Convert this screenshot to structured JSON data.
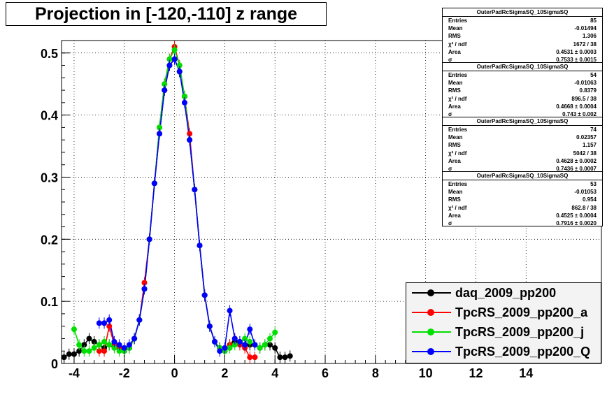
{
  "title": "Projection in [-120,-110] z range",
  "chart_data": {
    "type": "scatter",
    "title": "Projection in [-120,-110] z range",
    "xlim": [
      -4.5,
      17
    ],
    "ylim": [
      0,
      0.52
    ],
    "x_ticks": [
      -4,
      -2,
      0,
      2,
      4,
      6,
      8,
      10,
      12,
      14
    ],
    "y_ticks": [
      0,
      0.1,
      0.2,
      0.3,
      0.4,
      0.5
    ],
    "x_tick_labels": [
      "-4",
      "-2",
      "0",
      "2",
      "4",
      "6",
      "8",
      "10",
      "12",
      "14"
    ],
    "y_tick_labels": [
      "0",
      "0.1",
      "0.2",
      "0.3",
      "0.4",
      "0.5"
    ],
    "grid": true,
    "legend_position": "bottom-right",
    "series": [
      {
        "name": "daq_2009_pp200",
        "color": "#000000",
        "x": [
          -4.4,
          -4.2,
          -4.0,
          -3.8,
          -3.6,
          -3.4,
          -3.2,
          -3.0,
          -2.8,
          -2.6,
          -2.4,
          -2.2,
          -2.0,
          -1.8,
          -1.6,
          -1.4,
          -1.2,
          -1.0,
          -0.8,
          -0.6,
          -0.4,
          -0.2,
          0.0,
          0.2,
          0.4,
          0.6,
          0.8,
          1.0,
          1.2,
          1.4,
          1.6,
          1.8,
          2.0,
          2.2,
          2.4,
          2.6,
          2.8,
          3.0,
          3.2,
          3.4,
          3.6,
          3.8,
          4.0,
          4.2,
          4.4,
          4.6
        ],
        "y": [
          0.01,
          0.015,
          0.015,
          0.02,
          0.03,
          0.04,
          0.035,
          0.03,
          0.025,
          0.03,
          0.028,
          0.025,
          0.02,
          0.025,
          0.04,
          0.07,
          0.12,
          0.2,
          0.29,
          0.37,
          0.44,
          0.48,
          0.49,
          0.47,
          0.43,
          0.36,
          0.28,
          0.19,
          0.11,
          0.06,
          0.035,
          0.025,
          0.02,
          0.03,
          0.035,
          0.035,
          0.03,
          0.03,
          0.03,
          0.025,
          0.03,
          0.03,
          0.025,
          0.01,
          0.01,
          0.012
        ]
      },
      {
        "name": "TpcRS_2009_pp200_a",
        "color": "#ff0000",
        "x": [
          -3.0,
          -2.8,
          -2.6,
          -2.4,
          -2.2,
          -2.0,
          -1.8,
          -1.6,
          -1.4,
          -1.2,
          -1.0,
          -0.8,
          -0.6,
          -0.4,
          -0.2,
          0.0,
          0.2,
          0.4,
          0.6,
          0.8,
          1.0,
          1.2,
          1.4,
          1.6,
          1.8,
          2.0,
          2.2,
          2.4,
          2.6,
          2.8,
          3.0,
          3.2
        ],
        "y": [
          0.02,
          0.02,
          0.06,
          0.03,
          0.025,
          0.02,
          0.025,
          0.04,
          0.07,
          0.13,
          0.2,
          0.29,
          0.38,
          0.45,
          0.49,
          0.51,
          0.48,
          0.43,
          0.37,
          0.28,
          0.19,
          0.11,
          0.06,
          0.035,
          0.025,
          0.02,
          0.03,
          0.04,
          0.03,
          0.025,
          0.01,
          0.01
        ]
      },
      {
        "name": "TpcRS_2009_pp200_j",
        "color": "#00e000",
        "x": [
          -4.0,
          -3.8,
          -3.6,
          -3.4,
          -3.2,
          -3.0,
          -2.8,
          -2.6,
          -2.4,
          -2.2,
          -2.0,
          -1.8,
          -1.6,
          -1.4,
          -1.2,
          -1.0,
          -0.8,
          -0.6,
          -0.4,
          -0.2,
          0.0,
          0.2,
          0.4,
          0.6,
          0.8,
          1.0,
          1.2,
          1.4,
          1.6,
          1.8,
          2.0,
          2.2,
          2.4,
          2.6,
          2.8,
          3.0,
          3.2,
          3.4,
          3.6,
          3.8,
          4.0
        ],
        "y": [
          0.055,
          0.03,
          0.02,
          0.02,
          0.025,
          0.03,
          0.035,
          0.03,
          0.025,
          0.02,
          0.02,
          0.025,
          0.04,
          0.07,
          0.12,
          0.2,
          0.29,
          0.38,
          0.45,
          0.49,
          0.505,
          0.48,
          0.43,
          0.36,
          0.28,
          0.19,
          0.11,
          0.06,
          0.035,
          0.025,
          0.02,
          0.025,
          0.03,
          0.035,
          0.04,
          0.035,
          0.03,
          0.025,
          0.03,
          0.04,
          0.05
        ]
      },
      {
        "name": "TpcRS_2009_pp200_Q",
        "color": "#0000ff",
        "x": [
          -3.0,
          -2.8,
          -2.6,
          -2.4,
          -2.2,
          -2.0,
          -1.8,
          -1.6,
          -1.4,
          -1.2,
          -1.0,
          -0.8,
          -0.6,
          -0.4,
          -0.2,
          0.0,
          0.2,
          0.4,
          0.6,
          0.8,
          1.0,
          1.2,
          1.4,
          1.6,
          1.8,
          2.0,
          2.2,
          2.4,
          2.6,
          2.8,
          3.0,
          3.2
        ],
        "y": [
          0.065,
          0.065,
          0.07,
          0.035,
          0.03,
          0.025,
          0.03,
          0.04,
          0.07,
          0.12,
          0.2,
          0.29,
          0.37,
          0.44,
          0.48,
          0.49,
          0.47,
          0.42,
          0.36,
          0.28,
          0.19,
          0.11,
          0.06,
          0.035,
          0.02,
          0.025,
          0.085,
          0.04,
          0.035,
          0.03,
          0.055,
          0.03
        ]
      }
    ]
  },
  "stats": [
    {
      "title": "OuterPadRcSigmaSQ_10SigmaSQ",
      "rows": [
        {
          "label": "Entries",
          "value": "85"
        },
        {
          "label": "Mean",
          "value": "-0.01494"
        },
        {
          "label": "RMS",
          "value": "1.306"
        },
        {
          "label": "χ² / ndf",
          "value": "1672 / 38"
        },
        {
          "label": "Area",
          "value": "0.4531 ± 0.0003"
        },
        {
          "label": "σ",
          "value": "0.7533 ± 0.0015"
        }
      ]
    },
    {
      "title": "OuterPadRcSigmaSQ_10SigmaSQ",
      "rows": [
        {
          "label": "Entries",
          "value": "54"
        },
        {
          "label": "Mean",
          "value": "-0.01063"
        },
        {
          "label": "RMS",
          "value": "0.8379"
        },
        {
          "label": "χ² / ndf",
          "value": "896.5 / 38"
        },
        {
          "label": "Area",
          "value": "0.4668 ± 0.0004"
        },
        {
          "label": "σ",
          "value": "0.743 ± 0.002"
        }
      ]
    },
    {
      "title": "OuterPadRcSigmaSQ_10SigmaSQ",
      "rows": [
        {
          "label": "Entries",
          "value": "74"
        },
        {
          "label": "Mean",
          "value": "0.02357"
        },
        {
          "label": "RMS",
          "value": "1.157"
        },
        {
          "label": "χ² / ndf",
          "value": "5042 / 38"
        },
        {
          "label": "Area",
          "value": "0.4628 ± 0.0002"
        },
        {
          "label": "σ",
          "value": "0.7436 ± 0.0007"
        }
      ]
    },
    {
      "title": "OuterPadRcSigmaSQ_10SigmaSQ",
      "rows": [
        {
          "label": "Entries",
          "value": "53"
        },
        {
          "label": "Mean",
          "value": "-0.01053"
        },
        {
          "label": "RMS",
          "value": "0.954"
        },
        {
          "label": "χ² / ndf",
          "value": "862.8 / 38"
        },
        {
          "label": "Area",
          "value": "0.4525 ± 0.0004"
        },
        {
          "label": "σ",
          "value": "0.7916 ± 0.0020"
        }
      ]
    }
  ],
  "legend": [
    {
      "label": "daq_2009_pp200",
      "color": "#000000"
    },
    {
      "label": "TpcRS_2009_pp200_a",
      "color": "#ff0000"
    },
    {
      "label": "TpcRS_2009_pp200_j",
      "color": "#00e000"
    },
    {
      "label": "TpcRS_2009_pp200_Q",
      "color": "#0000ff"
    }
  ]
}
